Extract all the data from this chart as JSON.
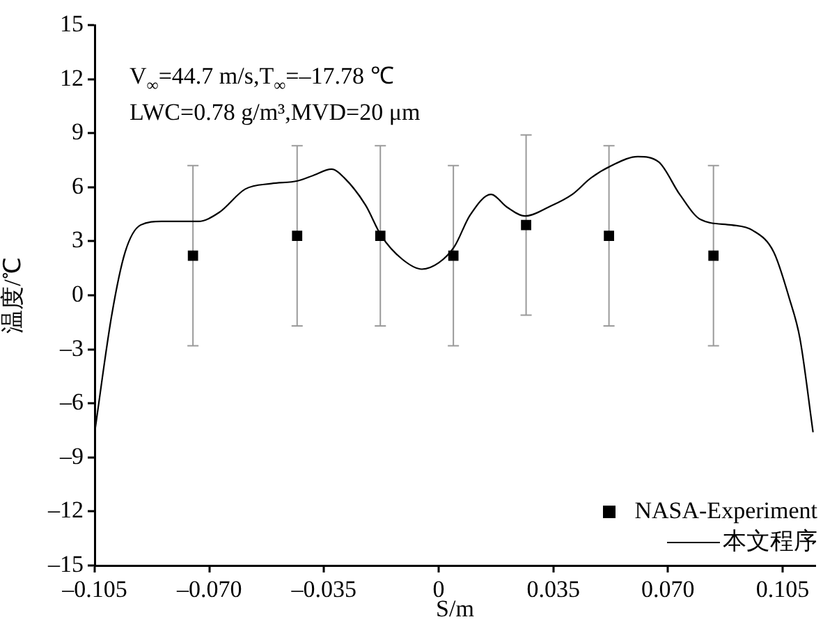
{
  "chart_data": {
    "type": "scatter",
    "xlabel": "S/m",
    "ylabel": "温度/℃",
    "annotations": [
      "V$_{∞}$=44.7 m/s,T$_{∞}$=–17.78 ℃",
      "LWC=0.78 g/m³,MVD=20 μm"
    ],
    "xlim": [
      -0.105,
      0.115
    ],
    "xticks": [
      {
        "value": -0.105,
        "label": "–0.105"
      },
      {
        "value": -0.07,
        "label": "–0.070"
      },
      {
        "value": -0.035,
        "label": "–0.035"
      },
      {
        "value": 0,
        "label": "0"
      },
      {
        "value": 0.035,
        "label": "0.035"
      },
      {
        "value": 0.07,
        "label": "0.070"
      },
      {
        "value": 0.105,
        "label": "0.105"
      }
    ],
    "ylim": [
      -15,
      15
    ],
    "yticks": [
      {
        "value": -15,
        "label": "–15"
      },
      {
        "value": -12,
        "label": "–12"
      },
      {
        "value": -9,
        "label": "–9"
      },
      {
        "value": -6,
        "label": "–6"
      },
      {
        "value": -3,
        "label": "–3"
      },
      0,
      3,
      6,
      9,
      12,
      15
    ],
    "grid": false,
    "legend": "bottom right",
    "series": [
      {
        "name": "NASA-Experiment",
        "type": "scatter",
        "color": "#000000",
        "marker": "square",
        "x": [
          -0.075,
          -0.0432,
          -0.0178,
          0.0045,
          0.0267,
          0.052,
          0.0839
        ],
        "values": [
          2.2,
          3.3,
          3.3,
          2.2,
          3.9,
          3.3,
          2.2
        ],
        "errors": [
          5,
          5,
          5,
          5,
          5,
          5,
          5
        ]
      },
      {
        "name": "本文程序",
        "type": "line",
        "color": "#000000",
        "marker": "none",
        "line_style": "solid",
        "x": [
          -0.105,
          -0.0998,
          -0.0957,
          -0.091,
          -0.0846,
          -0.0734,
          -0.067,
          -0.059,
          -0.0511,
          -0.0431,
          -0.0383,
          -0.0327,
          -0.0287,
          -0.0223,
          -0.0175,
          -0.0111,
          -0.0051,
          0,
          0.0048,
          0.0096,
          0.016,
          0.0208,
          0.0264,
          0.0336,
          0.0408,
          0.0464,
          0.0528,
          0.0608,
          0.0672,
          0.0736,
          0.08,
          0.0895,
          0.0959,
          0.1023,
          0.1071,
          0.1103,
          0.1143
        ],
        "values": [
          -7.6,
          -1.1,
          2.4,
          3.9,
          4.1,
          4.1,
          4.6,
          5.9,
          6.2,
          6.35,
          6.65,
          7.0,
          6.5,
          5.0,
          3.3,
          2.0,
          1.45,
          1.8,
          2.7,
          4.45,
          5.6,
          4.9,
          4.4,
          4.9,
          5.6,
          6.5,
          7.2,
          7.7,
          7.4,
          5.6,
          4.2,
          3.9,
          3.6,
          2.4,
          -0.2,
          -2.4,
          -7.6
        ]
      }
    ]
  }
}
